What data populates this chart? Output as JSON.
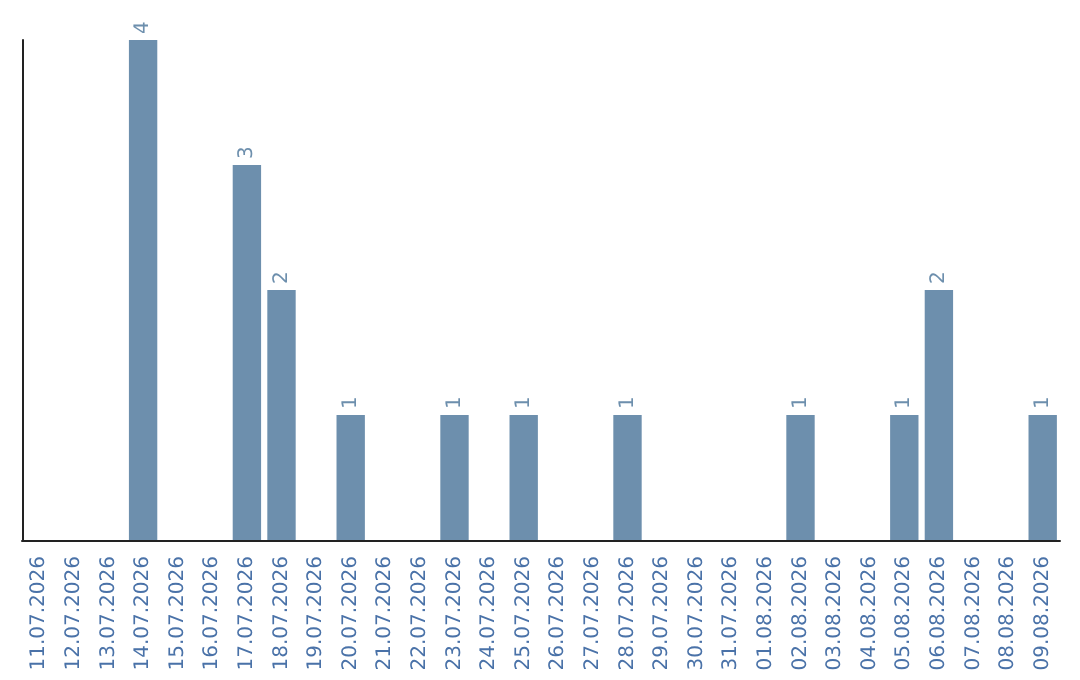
{
  "chart_data": {
    "type": "bar",
    "categories": [
      "11.07.2026",
      "12.07.2026",
      "13.07.2026",
      "14.07.2026",
      "15.07.2026",
      "16.07.2026",
      "17.07.2026",
      "18.07.2026",
      "19.07.2026",
      "20.07.2026",
      "21.07.2026",
      "22.07.2026",
      "23.07.2026",
      "24.07.2026",
      "25.07.2026",
      "26.07.2026",
      "27.07.2026",
      "28.07.2026",
      "29.07.2026",
      "30.07.2026",
      "31.07.2026",
      "01.08.2026",
      "02.08.2026",
      "03.08.2026",
      "04.08.2026",
      "05.08.2026",
      "06.08.2026",
      "07.08.2026",
      "08.08.2026",
      "09.08.2026"
    ],
    "values": [
      0,
      0,
      0,
      4,
      0,
      0,
      3,
      2,
      0,
      1,
      0,
      0,
      1,
      0,
      1,
      0,
      0,
      1,
      0,
      0,
      0,
      0,
      1,
      0,
      0,
      1,
      2,
      0,
      0,
      1
    ],
    "value_labels": [
      null,
      null,
      null,
      "4",
      null,
      null,
      "3",
      "2",
      null,
      "1",
      null,
      null,
      "1",
      null,
      "1",
      null,
      null,
      "1",
      null,
      null,
      null,
      null,
      "1",
      null,
      null,
      "1",
      "2",
      null,
      null,
      "1"
    ],
    "color": "#6d8fad",
    "grid": false
  }
}
